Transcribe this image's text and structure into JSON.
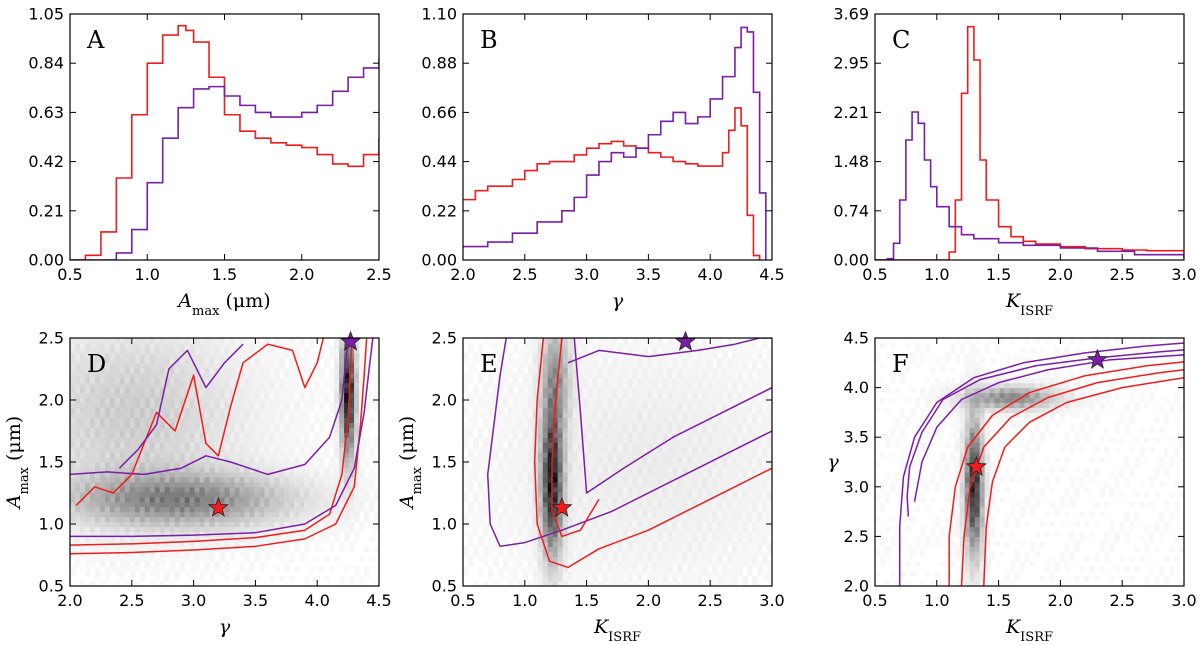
{
  "figure": {
    "width": 1200,
    "height": 645
  },
  "colors": {
    "red": "#ee1c1c",
    "purple": "#7a1ea8",
    "star_red": "#ee1c1c",
    "star_purple": "#7a1ea8"
  },
  "chart_data": [
    {
      "id": "A",
      "type": "line",
      "panel_label": "A",
      "xlabel": "A_max (μm)",
      "xlabel_main": "A",
      "xlabel_sub": "max",
      "xlabel_rest": " (μm)",
      "ylabel": "",
      "xlim": [
        0.5,
        2.5
      ],
      "ylim": [
        0,
        1.05
      ],
      "xticks": [
        "0.5",
        "1.0",
        "1.5",
        "2.0",
        "2.5"
      ],
      "yticks": [
        "0.00",
        "0.21",
        "0.42",
        "0.63",
        "0.84",
        "1.05"
      ],
      "series": [
        {
          "color": "red",
          "x": [
            0.5,
            0.6,
            0.7,
            0.8,
            0.9,
            1.0,
            1.1,
            1.2,
            1.25,
            1.3,
            1.4,
            1.5,
            1.6,
            1.7,
            1.8,
            1.9,
            2.0,
            2.1,
            2.2,
            2.3,
            2.4,
            2.5
          ],
          "y": [
            0.0,
            0.02,
            0.12,
            0.35,
            0.62,
            0.84,
            0.96,
            1.0,
            0.98,
            0.93,
            0.78,
            0.62,
            0.55,
            0.52,
            0.5,
            0.49,
            0.48,
            0.45,
            0.41,
            0.4,
            0.45,
            0.52
          ]
        },
        {
          "color": "purple",
          "x": [
            0.5,
            0.7,
            0.8,
            0.9,
            1.0,
            1.1,
            1.2,
            1.3,
            1.4,
            1.5,
            1.6,
            1.7,
            1.8,
            1.9,
            2.0,
            2.1,
            2.2,
            2.3,
            2.4,
            2.5
          ],
          "y": [
            0.0,
            0.0,
            0.03,
            0.13,
            0.33,
            0.52,
            0.65,
            0.73,
            0.74,
            0.7,
            0.66,
            0.63,
            0.61,
            0.61,
            0.63,
            0.66,
            0.72,
            0.78,
            0.82,
            0.86
          ]
        }
      ]
    },
    {
      "id": "B",
      "type": "line",
      "panel_label": "B",
      "xlabel": "γ",
      "ylabel": "",
      "xlim": [
        2.0,
        4.5
      ],
      "ylim": [
        0,
        1.1
      ],
      "xticks": [
        "2.0",
        "2.5",
        "3.0",
        "3.5",
        "4.0",
        "4.5"
      ],
      "yticks": [
        "0.00",
        "0.22",
        "0.44",
        "0.66",
        "0.88",
        "1.10"
      ],
      "series": [
        {
          "color": "red",
          "x": [
            2.0,
            2.1,
            2.2,
            2.3,
            2.4,
            2.5,
            2.6,
            2.7,
            2.8,
            2.9,
            3.0,
            3.1,
            3.2,
            3.3,
            3.4,
            3.5,
            3.6,
            3.7,
            3.8,
            3.9,
            4.0,
            4.1,
            4.15,
            4.2,
            4.25,
            4.3,
            4.35,
            4.4
          ],
          "y": [
            0.27,
            0.31,
            0.33,
            0.33,
            0.36,
            0.4,
            0.43,
            0.44,
            0.44,
            0.47,
            0.5,
            0.52,
            0.53,
            0.51,
            0.5,
            0.48,
            0.46,
            0.44,
            0.43,
            0.42,
            0.42,
            0.48,
            0.58,
            0.68,
            0.6,
            0.2,
            0.02,
            0.0
          ]
        },
        {
          "color": "purple",
          "x": [
            2.0,
            2.2,
            2.4,
            2.6,
            2.8,
            2.9,
            3.0,
            3.1,
            3.2,
            3.3,
            3.4,
            3.5,
            3.6,
            3.7,
            3.8,
            3.9,
            4.0,
            4.1,
            4.2,
            4.25,
            4.3,
            4.35,
            4.4,
            4.45
          ],
          "y": [
            0.06,
            0.08,
            0.12,
            0.17,
            0.22,
            0.28,
            0.38,
            0.44,
            0.48,
            0.46,
            0.5,
            0.56,
            0.62,
            0.66,
            0.61,
            0.64,
            0.72,
            0.82,
            0.95,
            1.04,
            1.02,
            0.75,
            0.3,
            0.0
          ]
        }
      ]
    },
    {
      "id": "C",
      "type": "line",
      "panel_label": "C",
      "xlabel": "K_ISRF",
      "xlabel_main": "K",
      "xlabel_sub": "ISRF",
      "xlabel_rest": "",
      "ylabel": "",
      "xlim": [
        0.5,
        3.0
      ],
      "ylim": [
        0,
        3.69
      ],
      "xticks": [
        "0.5",
        "1.0",
        "1.5",
        "2.0",
        "2.5",
        "3.0"
      ],
      "yticks": [
        "0.00",
        "0.74",
        "1.48",
        "2.21",
        "2.95",
        "3.69"
      ],
      "series": [
        {
          "color": "red",
          "x": [
            0.5,
            1.0,
            1.1,
            1.15,
            1.2,
            1.25,
            1.3,
            1.35,
            1.4,
            1.5,
            1.6,
            1.7,
            1.8,
            2.0,
            2.2,
            2.5,
            2.7,
            3.0
          ],
          "y": [
            0.0,
            0.0,
            0.12,
            0.9,
            2.5,
            3.5,
            3.0,
            1.5,
            0.9,
            0.5,
            0.35,
            0.28,
            0.24,
            0.2,
            0.17,
            0.15,
            0.14,
            0.14
          ]
        },
        {
          "color": "purple",
          "x": [
            0.5,
            0.6,
            0.65,
            0.7,
            0.75,
            0.8,
            0.85,
            0.9,
            0.95,
            1.0,
            1.1,
            1.2,
            1.3,
            1.5,
            1.7,
            2.0,
            2.3,
            2.6,
            3.0
          ],
          "y": [
            0.0,
            0.02,
            0.25,
            0.9,
            1.8,
            2.22,
            2.05,
            1.5,
            1.1,
            0.8,
            0.5,
            0.38,
            0.32,
            0.26,
            0.22,
            0.18,
            0.13,
            0.08,
            0.03
          ]
        }
      ]
    },
    {
      "id": "D",
      "type": "heatmap",
      "panel_label": "D",
      "xlabel": "γ",
      "ylabel": "A_max (μm)",
      "ylabel_main": "A",
      "ylabel_sub": "max",
      "ylabel_rest": " (μm)",
      "xlim": [
        2.0,
        4.5
      ],
      "ylim": [
        0.5,
        2.5
      ],
      "xticks": [
        "2.0",
        "2.5",
        "3.0",
        "3.5",
        "4.0",
        "4.5"
      ],
      "yticks": [
        "0.5",
        "1.0",
        "1.5",
        "2.0",
        "2.5"
      ],
      "stars": [
        {
          "color": "red",
          "x": 3.2,
          "y": 1.13
        },
        {
          "color": "purple",
          "x": 4.27,
          "y": 2.47
        }
      ],
      "density": [
        {
          "x": 2.9,
          "y": 1.2,
          "sx": 0.6,
          "sy": 0.15,
          "w": 0.45
        },
        {
          "x": 4.25,
          "y": 2.05,
          "sx": 0.04,
          "sy": 0.35,
          "w": 0.9
        },
        {
          "x": 2.5,
          "y": 1.9,
          "sx": 0.6,
          "sy": 0.5,
          "w": 0.18
        }
      ],
      "contours": [
        {
          "color": "red",
          "x": [
            2.0,
            2.5,
            3.0,
            3.5,
            3.9,
            4.15,
            4.3,
            4.35,
            4.38,
            4.4
          ],
          "y": [
            0.76,
            0.77,
            0.79,
            0.82,
            0.88,
            1.0,
            1.3,
            1.8,
            2.2,
            2.5
          ]
        },
        {
          "color": "red",
          "x": [
            2.0,
            2.5,
            3.0,
            3.5,
            3.9,
            4.1,
            4.2,
            4.25,
            4.27,
            4.28
          ],
          "y": [
            0.83,
            0.84,
            0.86,
            0.89,
            0.95,
            1.08,
            1.4,
            1.85,
            2.25,
            2.5
          ]
        },
        {
          "color": "purple",
          "x": [
            2.0,
            2.5,
            3.0,
            3.5,
            3.9,
            4.15,
            4.3,
            4.38,
            4.42,
            4.45
          ],
          "y": [
            0.9,
            0.9,
            0.91,
            0.93,
            1.0,
            1.15,
            1.45,
            1.9,
            2.25,
            2.5
          ]
        },
        {
          "color": "purple",
          "x": [
            2.0,
            2.3,
            2.6,
            2.9,
            3.1,
            3.3,
            3.6,
            3.9,
            4.1,
            4.2,
            4.23,
            4.25
          ],
          "y": [
            1.4,
            1.42,
            1.4,
            1.45,
            1.55,
            1.5,
            1.4,
            1.48,
            1.7,
            2.0,
            2.3,
            2.5
          ]
        },
        {
          "color": "red",
          "x": [
            2.05,
            2.2,
            2.35,
            2.5,
            2.7,
            2.85,
            3.0,
            3.1,
            3.2,
            3.3,
            3.4,
            3.6,
            3.8,
            3.9,
            4.0,
            4.05
          ],
          "y": [
            1.15,
            1.3,
            1.25,
            1.4,
            1.9,
            1.75,
            2.2,
            1.65,
            1.55,
            1.95,
            2.3,
            2.45,
            2.4,
            2.1,
            2.3,
            2.5
          ]
        },
        {
          "color": "purple",
          "x": [
            2.4,
            2.55,
            2.7,
            2.8,
            2.95,
            3.1,
            3.25,
            3.4
          ],
          "y": [
            1.45,
            1.6,
            1.8,
            2.25,
            2.4,
            2.1,
            2.3,
            2.45
          ]
        }
      ]
    },
    {
      "id": "E",
      "type": "heatmap",
      "panel_label": "E",
      "xlabel": "K_ISRF",
      "xlabel_main": "K",
      "xlabel_sub": "ISRF",
      "xlabel_rest": "",
      "ylabel": "A_max (μm)",
      "ylabel_main": "A",
      "ylabel_sub": "max",
      "ylabel_rest": " (μm)",
      "xlim": [
        0.5,
        3.0
      ],
      "ylim": [
        0.5,
        2.5
      ],
      "xticks": [
        "0.5",
        "1.0",
        "1.5",
        "2.0",
        "2.5",
        "3.0"
      ],
      "yticks": [
        "0.5",
        "1.0",
        "1.5",
        "2.0",
        "2.5"
      ],
      "stars": [
        {
          "color": "red",
          "x": 1.3,
          "y": 1.13
        },
        {
          "color": "purple",
          "x": 2.3,
          "y": 2.47
        }
      ],
      "density": [
        {
          "x": 1.22,
          "y": 1.35,
          "sx": 0.06,
          "sy": 0.4,
          "w": 0.85
        },
        {
          "x": 1.25,
          "y": 2.2,
          "sx": 0.08,
          "sy": 0.3,
          "w": 0.35
        },
        {
          "x": 2.0,
          "y": 1.5,
          "sx": 0.8,
          "sy": 0.6,
          "w": 0.06
        }
      ],
      "contours": [
        {
          "color": "purple",
          "x": [
            0.85,
            0.8,
            0.75,
            0.7,
            0.72,
            0.8,
            1.0,
            1.3,
            1.7,
            2.2,
            2.7,
            3.0
          ],
          "y": [
            2.5,
            2.2,
            1.8,
            1.4,
            1.0,
            0.82,
            0.85,
            0.95,
            1.1,
            1.35,
            1.6,
            1.75
          ]
        },
        {
          "color": "red",
          "x": [
            1.15,
            1.1,
            1.08,
            1.1,
            1.2,
            1.35,
            1.6,
            2.0,
            2.5,
            3.0
          ],
          "y": [
            2.5,
            2.0,
            1.5,
            1.0,
            0.7,
            0.65,
            0.8,
            0.95,
            1.2,
            1.45
          ]
        },
        {
          "color": "red",
          "x": [
            1.3,
            1.25,
            1.22,
            1.22,
            1.3,
            1.45,
            1.6
          ],
          "y": [
            2.5,
            2.0,
            1.5,
            1.1,
            0.9,
            0.95,
            1.2
          ]
        },
        {
          "color": "purple",
          "x": [
            1.4,
            1.45,
            1.5,
            1.8,
            2.2,
            2.6,
            2.9,
            3.0
          ],
          "y": [
            2.5,
            1.9,
            1.25,
            1.45,
            1.7,
            1.9,
            2.05,
            2.1
          ]
        },
        {
          "color": "purple",
          "x": [
            1.35,
            1.6,
            2.0,
            2.4,
            2.7,
            2.9,
            3.0
          ],
          "y": [
            2.3,
            2.4,
            2.35,
            2.4,
            2.45,
            2.5,
            2.5
          ]
        }
      ]
    },
    {
      "id": "F",
      "type": "heatmap",
      "panel_label": "F",
      "xlabel": "K_ISRF",
      "xlabel_main": "K",
      "xlabel_sub": "ISRF",
      "xlabel_rest": "",
      "ylabel": "γ",
      "xlim": [
        0.5,
        3.0
      ],
      "ylim": [
        2.0,
        4.5
      ],
      "xticks": [
        "0.5",
        "1.0",
        "1.5",
        "2.0",
        "2.5",
        "3.0"
      ],
      "yticks": [
        "2.0",
        "2.5",
        "3.0",
        "3.5",
        "4.0",
        "4.5"
      ],
      "stars": [
        {
          "color": "red",
          "x": 1.32,
          "y": 3.2
        },
        {
          "color": "purple",
          "x": 2.3,
          "y": 4.28
        }
      ],
      "density": [
        {
          "x": 1.3,
          "y": 3.0,
          "sx": 0.05,
          "sy": 0.45,
          "w": 0.8
        },
        {
          "x": 1.6,
          "y": 3.9,
          "sx": 0.25,
          "sy": 0.08,
          "w": 0.45
        }
      ],
      "contours": [
        {
          "color": "purple",
          "x": [
            0.7,
            0.7,
            0.73,
            0.82,
            1.0,
            1.3,
            1.7,
            2.2,
            2.7,
            3.0
          ],
          "y": [
            2.0,
            2.6,
            3.1,
            3.5,
            3.85,
            4.1,
            4.25,
            4.35,
            4.42,
            4.45
          ]
        },
        {
          "color": "purple",
          "x": [
            0.77,
            0.76,
            0.78,
            0.88,
            1.05,
            1.35,
            1.8,
            2.3,
            2.8,
            3.0
          ],
          "y": [
            2.7,
            2.9,
            3.2,
            3.55,
            3.88,
            4.08,
            4.22,
            4.3,
            4.36,
            4.38
          ]
        },
        {
          "color": "purple",
          "x": [
            0.82,
            0.88,
            1.0,
            1.2,
            1.5,
            1.9,
            2.4,
            3.0
          ],
          "y": [
            2.85,
            3.25,
            3.6,
            3.88,
            4.05,
            4.18,
            4.28,
            4.33
          ]
        },
        {
          "color": "red",
          "x": [
            1.1,
            1.1,
            1.15,
            1.25,
            1.45,
            1.75,
            2.2,
            2.7,
            3.0
          ],
          "y": [
            2.0,
            2.5,
            3.0,
            3.4,
            3.72,
            3.95,
            4.12,
            4.22,
            4.26
          ]
        },
        {
          "color": "red",
          "x": [
            1.2,
            1.22,
            1.27,
            1.38,
            1.6,
            1.9,
            2.3,
            2.8,
            3.0
          ],
          "y": [
            2.0,
            2.5,
            3.0,
            3.4,
            3.7,
            3.9,
            4.05,
            4.15,
            4.18
          ]
        },
        {
          "color": "red",
          "x": [
            1.38,
            1.4,
            1.45,
            1.55,
            1.75,
            2.05,
            2.5,
            3.0
          ],
          "y": [
            2.0,
            2.6,
            3.05,
            3.4,
            3.65,
            3.85,
            4.0,
            4.1
          ]
        }
      ]
    }
  ]
}
